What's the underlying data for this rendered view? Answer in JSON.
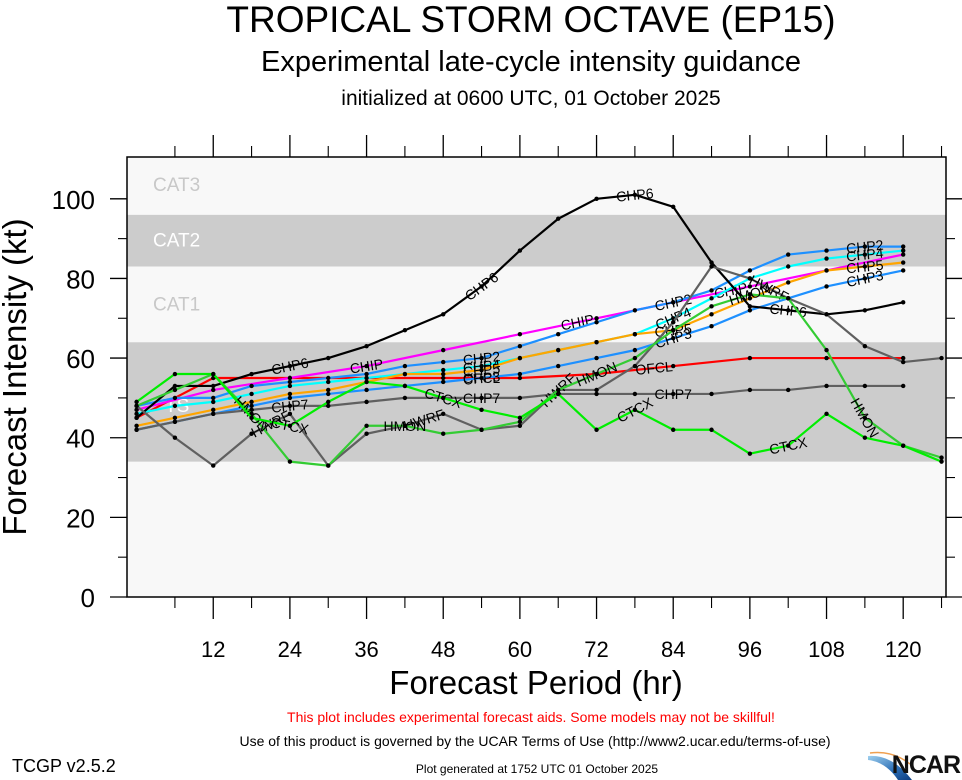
{
  "header": {
    "title": "TROPICAL STORM OCTAVE (EP15)",
    "subtitle": "Experimental late-cycle intensity guidance",
    "init_line": "initialized at 0600 UTC, 01 October 2025"
  },
  "footer": {
    "warning": "This plot includes experimental forecast aids. Some models may not be skillful!",
    "terms": "Use of this product is governed by the UCAR Terms of Use (http://www2.ucar.edu/terms-of-use)",
    "version": "TCGP v2.5.2",
    "generated": "Plot generated at 1752 UTC   01 October 2025",
    "logo_text": "NCAR"
  },
  "chart_data": {
    "type": "line",
    "title": "TROPICAL STORM OCTAVE (EP15)",
    "xlabel": "Forecast Period (hr)",
    "ylabel": "Forecast Intensity (kt)",
    "xlim": [
      -1.5,
      126.7
    ],
    "ylim": [
      0,
      110.5
    ],
    "xticks": [
      12,
      24,
      36,
      48,
      60,
      72,
      84,
      96,
      108,
      120
    ],
    "xminor": [
      6,
      18,
      30,
      42,
      54,
      66,
      78,
      90,
      102,
      114,
      126
    ],
    "yticks": [
      0,
      20,
      40,
      60,
      80,
      100
    ],
    "yminor": [
      10,
      30,
      50,
      70,
      90
    ],
    "grid": false,
    "bands": [
      {
        "label": "TS",
        "from": 34,
        "to": 64,
        "color": "#cccccc",
        "label_color": "#ffffff"
      },
      {
        "label": "CAT1",
        "from": 64,
        "to": 83,
        "color": "#f8f8f8",
        "label_color": "#c8c8c8"
      },
      {
        "label": "CAT2",
        "from": 83,
        "to": 96,
        "color": "#cccccc",
        "label_color": "#ffffff"
      },
      {
        "label": "CAT3",
        "from": 96,
        "to": 110.5,
        "color": "#f8f8f8",
        "label_color": "#c8c8c8"
      }
    ],
    "series": [
      {
        "name": "OFCL",
        "color": "#ff0000",
        "x": [
          0,
          12,
          24,
          36,
          48,
          60,
          72,
          84,
          96,
          108,
          120
        ],
        "y": [
          45,
          55,
          55,
          55,
          55,
          55,
          56,
          58,
          60,
          60,
          60
        ],
        "labels_at": [
          54,
          81
        ]
      },
      {
        "name": "CHIP",
        "color": "#ff00ff",
        "x": [
          0,
          12,
          24,
          36,
          48,
          60,
          72,
          84,
          96,
          108,
          120
        ],
        "y": [
          47,
          52,
          55,
          58,
          62,
          66,
          70,
          74,
          78,
          82,
          86
        ],
        "labels_at": [
          36,
          69,
          93
        ]
      },
      {
        "name": "CHP2",
        "color": "#1e90ff",
        "x": [
          0,
          6,
          12,
          18,
          24,
          30,
          36,
          42,
          48,
          54,
          60,
          66,
          72,
          78,
          84,
          90,
          96,
          102,
          108,
          114,
          120
        ],
        "y": [
          48,
          50,
          50,
          53,
          54,
          55,
          56,
          58,
          59,
          60,
          63,
          66,
          69,
          72,
          74,
          77,
          82,
          86,
          87,
          88,
          88
        ],
        "labels_at": [
          54,
          84,
          114
        ]
      },
      {
        "name": "CHP3",
        "color": "#1e90ff",
        "x": [
          0,
          6,
          12,
          18,
          24,
          30,
          36,
          42,
          48,
          54,
          60,
          66,
          72,
          78,
          84,
          90,
          96,
          102,
          108,
          114,
          120
        ],
        "y": [
          42,
          44,
          46,
          48,
          50,
          51,
          52,
          53,
          54,
          55,
          56,
          58,
          60,
          62,
          65,
          68,
          72,
          75,
          78,
          80,
          82
        ],
        "labels_at": [
          54,
          84,
          114
        ]
      },
      {
        "name": "CHP4",
        "color": "#00ffff",
        "x": [
          0,
          6,
          12,
          18,
          24,
          30,
          36,
          42,
          48,
          54,
          60,
          66,
          72,
          78,
          84,
          90,
          96,
          102,
          108,
          114,
          120
        ],
        "y": [
          46,
          48,
          49,
          51,
          53,
          54,
          55,
          56,
          57,
          58,
          60,
          62,
          64,
          66,
          70,
          75,
          80,
          83,
          85,
          86,
          87
        ],
        "labels_at": [
          54,
          84,
          114
        ]
      },
      {
        "name": "CHP5",
        "color": "#ffa500",
        "x": [
          0,
          6,
          12,
          18,
          24,
          30,
          36,
          42,
          48,
          54,
          60,
          66,
          72,
          78,
          84,
          90,
          96,
          102,
          108,
          114,
          120
        ],
        "y": [
          43,
          45,
          47,
          49,
          51,
          52,
          54,
          56,
          56,
          57,
          60,
          62,
          64,
          66,
          67,
          71,
          75,
          79,
          82,
          83,
          84
        ],
        "labels_at": [
          54,
          84,
          114
        ]
      },
      {
        "name": "CHP6",
        "color": "#000000",
        "x": [
          0,
          6,
          12,
          18,
          24,
          30,
          36,
          42,
          48,
          54,
          60,
          66,
          72,
          78,
          84,
          90,
          96,
          102,
          108,
          114,
          120
        ],
        "y": [
          45,
          53,
          53,
          56,
          58,
          60,
          63,
          67,
          71,
          78,
          87,
          95,
          100,
          101,
          98,
          84,
          73,
          72,
          71,
          72,
          74
        ],
        "labels_at": [
          24,
          54,
          78,
          102
        ]
      },
      {
        "name": "CHP7",
        "color": "#606060",
        "x": [
          0,
          6,
          12,
          18,
          24,
          30,
          36,
          42,
          48,
          54,
          60,
          66,
          72,
          78,
          84,
          90,
          96,
          102,
          108,
          114,
          120
        ],
        "y": [
          42,
          44,
          46,
          47,
          48,
          48,
          49,
          50,
          50,
          50,
          50,
          51,
          51,
          51,
          51,
          51,
          52,
          52,
          53,
          53,
          53
        ],
        "labels_at": [
          24,
          54,
          84
        ]
      },
      {
        "name": "HWRF",
        "color": "#606060",
        "x": [
          0,
          6,
          12,
          18,
          24,
          30,
          36,
          42,
          48,
          54,
          60,
          66,
          72,
          78,
          84,
          90,
          96,
          102,
          108,
          114,
          120,
          126
        ],
        "y": [
          48,
          40,
          33,
          41,
          46,
          33,
          41,
          43,
          46,
          42,
          43,
          52,
          52,
          58,
          69,
          83,
          80,
          75,
          71,
          63,
          59,
          60
        ],
        "labels_at": [
          21,
          45,
          66,
          99
        ]
      },
      {
        "name": "HMON",
        "color": "#33cc33",
        "x": [
          0,
          6,
          12,
          18,
          24,
          30,
          36,
          42,
          48,
          54,
          60,
          66,
          72,
          78,
          84,
          90,
          96,
          102,
          108,
          114,
          120,
          126
        ],
        "y": [
          48,
          52,
          56,
          46,
          34,
          33,
          43,
          43,
          41,
          42,
          44,
          52,
          56,
          60,
          67,
          73,
          76,
          75,
          62,
          45,
          38,
          35
        ],
        "labels_at": [
          18,
          42,
          72,
          96,
          114
        ]
      },
      {
        "name": "CTCX",
        "color": "#00ee00",
        "x": [
          0,
          6,
          12,
          18,
          24,
          30,
          36,
          42,
          48,
          54,
          60,
          66,
          72,
          78,
          84,
          90,
          96,
          102,
          108,
          114,
          120,
          126
        ],
        "y": [
          49,
          56,
          56,
          45,
          43,
          49,
          54,
          53,
          50,
          47,
          45,
          51,
          42,
          47,
          42,
          42,
          36,
          38,
          46,
          40,
          38,
          34
        ],
        "labels_at": [
          24,
          48,
          78,
          102
        ]
      }
    ]
  }
}
